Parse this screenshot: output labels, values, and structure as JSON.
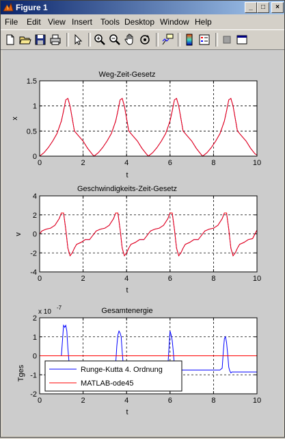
{
  "window": {
    "title": "Figure 1",
    "buttons": [
      "_",
      "□",
      "×"
    ]
  },
  "menu": [
    "File",
    "Edit",
    "View",
    "Insert",
    "Tools",
    "Desktop",
    "Window",
    "Help"
  ],
  "toolbar": {
    "icons": [
      "new-file-icon",
      "open-folder-icon",
      "save-icon",
      "print-icon",
      "pointer-icon",
      "zoom-in-icon",
      "zoom-out-icon",
      "pan-hand-icon",
      "rotate-3d-icon",
      "data-cursor-icon",
      "colorbar-icon",
      "legend-icon",
      "hide-plot-tools-icon",
      "show-plot-tools-icon"
    ]
  },
  "chart_data": [
    {
      "type": "line",
      "title": "Weg-Zeit-Gesetz",
      "xlabel": "t",
      "ylabel": "x",
      "xlim": [
        0,
        10
      ],
      "ylim": [
        0,
        1.5
      ],
      "xticks": [
        "0",
        "2",
        "4",
        "6",
        "8",
        "10"
      ],
      "yticks": [
        "0",
        "0.5",
        "1",
        "1.5"
      ],
      "grid": true,
      "series": [
        {
          "color": "#ff0000",
          "x": [
            0,
            0.2,
            0.4,
            0.6,
            0.8,
            1.0,
            1.1,
            1.2,
            1.3,
            1.4,
            1.5,
            1.6,
            1.8,
            2.0,
            2.2,
            2.4,
            2.5,
            2.7,
            2.9,
            3.1,
            3.3,
            3.5,
            3.6,
            3.7,
            3.8,
            3.9,
            4.0,
            4.1,
            4.3,
            4.5,
            4.7,
            4.9,
            5.0,
            5.2,
            5.4,
            5.6,
            5.8,
            6.0,
            6.1,
            6.2,
            6.3,
            6.4,
            6.5,
            6.6,
            6.8,
            7.0,
            7.2,
            7.4,
            7.5,
            7.7,
            7.9,
            8.1,
            8.3,
            8.5,
            8.6,
            8.7,
            8.8,
            8.9,
            9.0,
            9.1,
            9.3,
            9.5,
            9.7,
            9.9,
            10.0
          ],
          "y": [
            0,
            0.07,
            0.17,
            0.3,
            0.45,
            0.7,
            0.9,
            1.12,
            1.15,
            1.0,
            0.75,
            0.5,
            0.4,
            0.3,
            0.16,
            0.05,
            0.0,
            0.07,
            0.17,
            0.3,
            0.45,
            0.7,
            0.9,
            1.12,
            1.15,
            1.0,
            0.75,
            0.5,
            0.4,
            0.3,
            0.16,
            0.05,
            0.0,
            0.07,
            0.17,
            0.3,
            0.45,
            0.7,
            0.9,
            1.12,
            1.15,
            1.0,
            0.75,
            0.5,
            0.4,
            0.3,
            0.16,
            0.05,
            0.0,
            0.07,
            0.17,
            0.3,
            0.45,
            0.7,
            0.9,
            1.12,
            1.15,
            1.0,
            0.75,
            0.5,
            0.4,
            0.3,
            0.16,
            0.05,
            0.02
          ]
        },
        {
          "color": "#0000ff",
          "x": [
            0,
            0.2,
            0.4,
            0.6,
            0.8,
            1.0,
            1.1,
            1.2,
            1.3,
            1.4,
            1.5,
            1.6,
            1.8,
            2.0,
            2.2,
            2.4,
            2.5,
            2.7,
            2.9,
            3.1,
            3.3,
            3.5,
            3.6,
            3.7,
            3.8,
            3.9,
            4.0,
            4.1,
            4.3,
            4.5,
            4.7,
            4.9,
            5.0,
            5.2,
            5.4,
            5.6,
            5.8,
            6.0,
            6.1,
            6.2,
            6.3,
            6.4,
            6.5,
            6.6,
            6.8,
            7.0,
            7.2,
            7.4,
            7.5,
            7.7,
            7.9,
            8.1,
            8.3,
            8.5,
            8.6,
            8.7,
            8.8,
            8.9,
            9.0,
            9.1,
            9.3,
            9.5,
            9.7,
            9.9,
            10.0
          ],
          "y": [
            0,
            0.07,
            0.17,
            0.3,
            0.45,
            0.7,
            0.9,
            1.12,
            1.15,
            1.0,
            0.75,
            0.5,
            0.4,
            0.3,
            0.16,
            0.05,
            0.0,
            0.07,
            0.17,
            0.3,
            0.45,
            0.7,
            0.9,
            1.12,
            1.15,
            1.0,
            0.75,
            0.5,
            0.4,
            0.3,
            0.16,
            0.05,
            0.0,
            0.07,
            0.17,
            0.3,
            0.45,
            0.7,
            0.9,
            1.12,
            1.15,
            1.0,
            0.75,
            0.5,
            0.4,
            0.3,
            0.16,
            0.05,
            0.0,
            0.07,
            0.17,
            0.3,
            0.45,
            0.7,
            0.9,
            1.12,
            1.15,
            1.0,
            0.75,
            0.5,
            0.4,
            0.3,
            0.16,
            0.05,
            0.02
          ]
        }
      ]
    },
    {
      "type": "line",
      "title": "Geschwindigkeits-Zeit-Gesetz",
      "xlabel": "t",
      "ylabel": "v",
      "xlim": [
        0,
        10
      ],
      "ylim": [
        -4,
        4
      ],
      "xticks": [
        "0",
        "2",
        "4",
        "6",
        "8",
        "10"
      ],
      "yticks": [
        "-4",
        "-2",
        "0",
        "2",
        "4"
      ],
      "grid": true,
      "series": [
        {
          "color": "#ff0000",
          "x": [
            0,
            0.1,
            0.3,
            0.5,
            0.7,
            0.9,
            1.0,
            1.1,
            1.2,
            1.3,
            1.4,
            1.5,
            1.6,
            1.7,
            1.9,
            2.1,
            2.3,
            2.5,
            2.6,
            2.8,
            3.0,
            3.2,
            3.4,
            3.5,
            3.6,
            3.7,
            3.8,
            3.9,
            4.0,
            4.1,
            4.2,
            4.4,
            4.6,
            4.8,
            5.0,
            5.1,
            5.3,
            5.5,
            5.7,
            5.9,
            6.0,
            6.1,
            6.2,
            6.3,
            6.4,
            6.5,
            6.6,
            6.7,
            6.9,
            7.1,
            7.3,
            7.5,
            7.6,
            7.8,
            8.0,
            8.2,
            8.4,
            8.5,
            8.6,
            8.7,
            8.8,
            8.9,
            9.0,
            9.1,
            9.2,
            9.4,
            9.6,
            9.8,
            10.0
          ],
          "y": [
            0.0,
            0.3,
            0.5,
            0.6,
            0.9,
            1.6,
            2.2,
            2.2,
            0.5,
            -1.5,
            -2.3,
            -2.0,
            -1.5,
            -1.1,
            -0.9,
            -0.6,
            -0.6,
            0.0,
            0.3,
            0.5,
            0.6,
            0.9,
            1.6,
            2.2,
            2.2,
            0.5,
            -1.5,
            -2.3,
            -2.0,
            -1.5,
            -1.1,
            -0.9,
            -0.6,
            -0.6,
            0.0,
            0.3,
            0.5,
            0.6,
            0.9,
            1.6,
            2.2,
            2.2,
            0.5,
            -1.5,
            -2.3,
            -2.0,
            -1.5,
            -1.1,
            -0.9,
            -0.6,
            -0.6,
            0.0,
            0.3,
            0.5,
            0.6,
            0.9,
            1.6,
            2.2,
            2.2,
            0.5,
            -1.5,
            -2.3,
            -2.0,
            -1.5,
            -1.1,
            -0.9,
            -0.6,
            -0.5,
            0.4
          ]
        },
        {
          "color": "#0000ff",
          "x": [
            0,
            0.1,
            0.3,
            0.5,
            0.7,
            0.9,
            1.0,
            1.1,
            1.2,
            1.3,
            1.4,
            1.5,
            1.6,
            1.7,
            1.9,
            2.1,
            2.3,
            2.5,
            2.6,
            2.8,
            3.0,
            3.2,
            3.4,
            3.5,
            3.6,
            3.7,
            3.8,
            3.9,
            4.0,
            4.1,
            4.2,
            4.4,
            4.6,
            4.8,
            5.0,
            5.1,
            5.3,
            5.5,
            5.7,
            5.9,
            6.0,
            6.1,
            6.2,
            6.3,
            6.4,
            6.5,
            6.6,
            6.7,
            6.9,
            7.1,
            7.3,
            7.5,
            7.6,
            7.8,
            8.0,
            8.2,
            8.4,
            8.5,
            8.6,
            8.7,
            8.8,
            8.9,
            9.0,
            9.1,
            9.2,
            9.4,
            9.6,
            9.8,
            10.0
          ],
          "y": [
            0.0,
            0.3,
            0.5,
            0.6,
            0.9,
            1.6,
            2.2,
            2.2,
            0.5,
            -1.5,
            -2.3,
            -2.0,
            -1.5,
            -1.1,
            -0.9,
            -0.6,
            -0.6,
            0.0,
            0.3,
            0.5,
            0.6,
            0.9,
            1.6,
            2.2,
            2.2,
            0.5,
            -1.5,
            -2.3,
            -2.0,
            -1.5,
            -1.1,
            -0.9,
            -0.6,
            -0.6,
            0.0,
            0.3,
            0.5,
            0.6,
            0.9,
            1.6,
            2.2,
            2.2,
            0.5,
            -1.5,
            -2.3,
            -2.0,
            -1.5,
            -1.1,
            -0.9,
            -0.6,
            -0.6,
            0.0,
            0.3,
            0.5,
            0.6,
            0.9,
            1.6,
            2.2,
            2.2,
            0.5,
            -1.5,
            -2.3,
            -2.0,
            -1.5,
            -1.1,
            -0.9,
            -0.6,
            -0.5,
            0.4
          ]
        }
      ]
    },
    {
      "type": "line",
      "title": "Gesamtenergie",
      "xlabel": "t",
      "ylabel": "Tges",
      "exponent": "x 10",
      "exponent_power": "-7",
      "xlim": [
        0,
        10
      ],
      "ylim": [
        -2,
        2
      ],
      "xticks": [
        "0",
        "2",
        "4",
        "6",
        "8",
        "10"
      ],
      "yticks": [
        "-2",
        "-1",
        "0",
        "1",
        "2"
      ],
      "grid": true,
      "legend_position": "bottom-left",
      "series": [
        {
          "name": "Runge-Kutta 4. Ordnung",
          "color": "#0000ff",
          "x": [
            0,
            0.5,
            0.9,
            1.0,
            1.05,
            1.1,
            1.15,
            1.2,
            1.25,
            1.3,
            1.35,
            1.4,
            1.45,
            1.5,
            1.55,
            2.3,
            2.6,
            3.4,
            3.5,
            3.55,
            3.6,
            3.65,
            3.7,
            3.75,
            3.8,
            3.85,
            3.9,
            3.95,
            4.0,
            4.05,
            5.8,
            5.9,
            5.95,
            6.0,
            6.05,
            6.1,
            6.15,
            6.2,
            6.25,
            6.3,
            6.35,
            6.4,
            6.45,
            6.5,
            6.55,
            8.3,
            8.4,
            8.45,
            8.5,
            8.55,
            8.6,
            8.65,
            8.7,
            8.75,
            8.8,
            8.85,
            8.9,
            8.95,
            9.0,
            9.05,
            9.5,
            10.0
          ],
          "y": [
            0.0,
            0.0,
            0.0,
            0.0,
            0.8,
            1.6,
            1.5,
            1.6,
            1.3,
            0.4,
            -0.3,
            -0.35,
            -0.5,
            -0.45,
            -0.3,
            -0.3,
            -0.4,
            -0.4,
            -0.4,
            0.5,
            1.1,
            1.3,
            1.2,
            1.0,
            0.2,
            -0.5,
            -0.6,
            -0.65,
            -0.6,
            -0.55,
            -0.55,
            -0.55,
            0.4,
            1.3,
            1.1,
            0.8,
            0.2,
            -0.5,
            -0.7,
            -0.8,
            -0.75,
            -0.8,
            -0.75,
            -0.75,
            -0.75,
            -0.75,
            -0.65,
            0.2,
            0.9,
            1.0,
            0.7,
            0.1,
            -0.6,
            -0.8,
            -0.9,
            -0.85,
            -0.85,
            -0.85,
            -0.85,
            -0.85,
            -0.85,
            -0.85
          ]
        },
        {
          "name": "MATLAB-ode45",
          "color": "#ff0000",
          "x": [
            0,
            10
          ],
          "y": [
            0,
            0
          ]
        }
      ]
    }
  ]
}
